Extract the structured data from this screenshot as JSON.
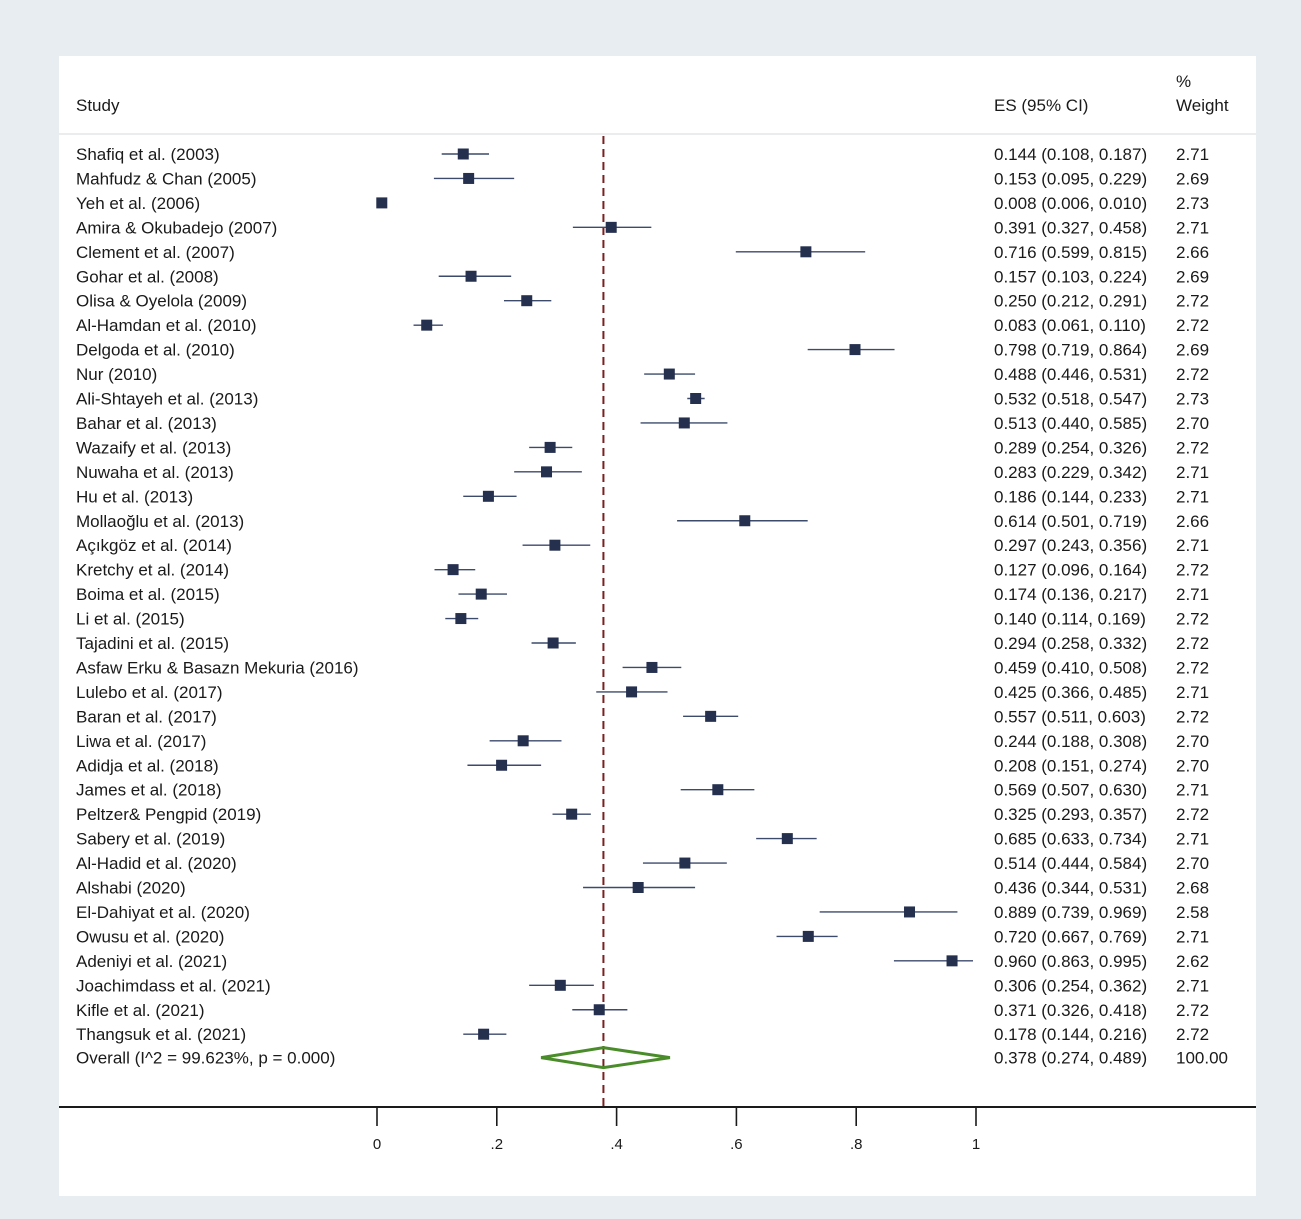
{
  "chart_data": {
    "type": "forest",
    "headers": {
      "study": "Study",
      "es": "ES (95% CI)",
      "weight_line1": "%",
      "weight_line2": "Weight"
    },
    "studies": [
      {
        "name": "Shafiq et al. (2003)",
        "es": 0.144,
        "lo": 0.108,
        "hi": 0.187,
        "es_text": "0.144 (0.108, 0.187)",
        "weight": "2.71"
      },
      {
        "name": "Mahfudz & Chan (2005)",
        "es": 0.153,
        "lo": 0.095,
        "hi": 0.229,
        "es_text": "0.153 (0.095, 0.229)",
        "weight": "2.69"
      },
      {
        "name": "Yeh et al. (2006)",
        "es": 0.008,
        "lo": 0.006,
        "hi": 0.01,
        "es_text": "0.008 (0.006, 0.010)",
        "weight": "2.73"
      },
      {
        "name": "Amira & Okubadejo (2007)",
        "es": 0.391,
        "lo": 0.327,
        "hi": 0.458,
        "es_text": "0.391 (0.327, 0.458)",
        "weight": "2.71"
      },
      {
        "name": "Clement et al. (2007)",
        "es": 0.716,
        "lo": 0.599,
        "hi": 0.815,
        "es_text": "0.716 (0.599, 0.815)",
        "weight": "2.66"
      },
      {
        "name": "Gohar et al. (2008)",
        "es": 0.157,
        "lo": 0.103,
        "hi": 0.224,
        "es_text": "0.157 (0.103, 0.224)",
        "weight": "2.69"
      },
      {
        "name": "Olisa & Oyelola (2009)",
        "es": 0.25,
        "lo": 0.212,
        "hi": 0.291,
        "es_text": "0.250 (0.212, 0.291)",
        "weight": "2.72"
      },
      {
        "name": "Al-Hamdan et al. (2010)",
        "es": 0.083,
        "lo": 0.061,
        "hi": 0.11,
        "es_text": "0.083 (0.061, 0.110)",
        "weight": "2.72"
      },
      {
        "name": "Delgoda et al. (2010)",
        "es": 0.798,
        "lo": 0.719,
        "hi": 0.864,
        "es_text": "0.798 (0.719, 0.864)",
        "weight": "2.69"
      },
      {
        "name": "Nur (2010)",
        "es": 0.488,
        "lo": 0.446,
        "hi": 0.531,
        "es_text": "0.488 (0.446, 0.531)",
        "weight": "2.72"
      },
      {
        "name": "Ali-Shtayeh et al. (2013)",
        "es": 0.532,
        "lo": 0.518,
        "hi": 0.547,
        "es_text": "0.532 (0.518, 0.547)",
        "weight": "2.73"
      },
      {
        "name": "Bahar et al. (2013)",
        "es": 0.513,
        "lo": 0.44,
        "hi": 0.585,
        "es_text": "0.513 (0.440, 0.585)",
        "weight": "2.70"
      },
      {
        "name": "Wazaify et al. (2013)",
        "es": 0.289,
        "lo": 0.254,
        "hi": 0.326,
        "es_text": "0.289 (0.254, 0.326)",
        "weight": "2.72"
      },
      {
        "name": "Nuwaha et al. (2013)",
        "es": 0.283,
        "lo": 0.229,
        "hi": 0.342,
        "es_text": "0.283 (0.229, 0.342)",
        "weight": "2.71"
      },
      {
        "name": "Hu et al. (2013)",
        "es": 0.186,
        "lo": 0.144,
        "hi": 0.233,
        "es_text": "0.186 (0.144, 0.233)",
        "weight": "2.71"
      },
      {
        "name": "Mollaoğlu et al. (2013)",
        "es": 0.614,
        "lo": 0.501,
        "hi": 0.719,
        "es_text": "0.614 (0.501, 0.719)",
        "weight": "2.66"
      },
      {
        "name": "Açıkgöz et al. (2014)",
        "es": 0.297,
        "lo": 0.243,
        "hi": 0.356,
        "es_text": "0.297 (0.243, 0.356)",
        "weight": "2.71"
      },
      {
        "name": "Kretchy et al. (2014)",
        "es": 0.127,
        "lo": 0.096,
        "hi": 0.164,
        "es_text": "0.127 (0.096, 0.164)",
        "weight": "2.72"
      },
      {
        "name": "Boima et al. (2015)",
        "es": 0.174,
        "lo": 0.136,
        "hi": 0.217,
        "es_text": "0.174 (0.136, 0.217)",
        "weight": "2.71"
      },
      {
        "name": "Li et al. (2015)",
        "es": 0.14,
        "lo": 0.114,
        "hi": 0.169,
        "es_text": "0.140 (0.114, 0.169)",
        "weight": "2.72"
      },
      {
        "name": "Tajadini et al. (2015)",
        "es": 0.294,
        "lo": 0.258,
        "hi": 0.332,
        "es_text": "0.294 (0.258, 0.332)",
        "weight": "2.72"
      },
      {
        "name": "Asfaw Erku & Basazn Mekuria (2016)",
        "es": 0.459,
        "lo": 0.41,
        "hi": 0.508,
        "es_text": "0.459 (0.410, 0.508)",
        "weight": "2.72"
      },
      {
        "name": "Lulebo et al. (2017)",
        "es": 0.425,
        "lo": 0.366,
        "hi": 0.485,
        "es_text": "0.425 (0.366, 0.485)",
        "weight": "2.71"
      },
      {
        "name": "Baran et al. (2017)",
        "es": 0.557,
        "lo": 0.511,
        "hi": 0.603,
        "es_text": "0.557 (0.511, 0.603)",
        "weight": "2.72"
      },
      {
        "name": "Liwa et al. (2017)",
        "es": 0.244,
        "lo": 0.188,
        "hi": 0.308,
        "es_text": "0.244 (0.188, 0.308)",
        "weight": "2.70"
      },
      {
        "name": "Adidja et al. (2018)",
        "es": 0.208,
        "lo": 0.151,
        "hi": 0.274,
        "es_text": "0.208 (0.151, 0.274)",
        "weight": "2.70"
      },
      {
        "name": "James et al. (2018)",
        "es": 0.569,
        "lo": 0.507,
        "hi": 0.63,
        "es_text": "0.569 (0.507, 0.630)",
        "weight": "2.71"
      },
      {
        "name": "Peltzer& Pengpid (2019)",
        "es": 0.325,
        "lo": 0.293,
        "hi": 0.357,
        "es_text": "0.325 (0.293, 0.357)",
        "weight": "2.72"
      },
      {
        "name": "Sabery et al. (2019)",
        "es": 0.685,
        "lo": 0.633,
        "hi": 0.734,
        "es_text": "0.685 (0.633, 0.734)",
        "weight": "2.71"
      },
      {
        "name": "Al-Hadid et al. (2020)",
        "es": 0.514,
        "lo": 0.444,
        "hi": 0.584,
        "es_text": "0.514 (0.444, 0.584)",
        "weight": "2.70"
      },
      {
        "name": "Alshabi (2020)",
        "es": 0.436,
        "lo": 0.344,
        "hi": 0.531,
        "es_text": "0.436 (0.344, 0.531)",
        "weight": "2.68"
      },
      {
        "name": "El-Dahiyat et al. (2020)",
        "es": 0.889,
        "lo": 0.739,
        "hi": 0.969,
        "es_text": "0.889 (0.739, 0.969)",
        "weight": "2.58"
      },
      {
        "name": "Owusu et al. (2020)",
        "es": 0.72,
        "lo": 0.667,
        "hi": 0.769,
        "es_text": "0.720 (0.667, 0.769)",
        "weight": "2.71"
      },
      {
        "name": "Adeniyi et al. (2021)",
        "es": 0.96,
        "lo": 0.863,
        "hi": 0.995,
        "es_text": "0.960 (0.863, 0.995)",
        "weight": "2.62"
      },
      {
        "name": "Joachimdass et al. (2021)",
        "es": 0.306,
        "lo": 0.254,
        "hi": 0.362,
        "es_text": "0.306 (0.254, 0.362)",
        "weight": "2.71"
      },
      {
        "name": "Kifle et al. (2021)",
        "es": 0.371,
        "lo": 0.326,
        "hi": 0.418,
        "es_text": "0.371 (0.326, 0.418)",
        "weight": "2.72"
      },
      {
        "name": "Thangsuk et al. (2021)",
        "es": 0.178,
        "lo": 0.144,
        "hi": 0.216,
        "es_text": "0.178 (0.144, 0.216)",
        "weight": "2.72"
      }
    ],
    "overall": {
      "label": "Overall  (I^2 = 99.623%, p = 0.000)",
      "es": 0.378,
      "lo": 0.274,
      "hi": 0.489,
      "es_text": "0.378 (0.274, 0.489)",
      "weight": "100.00"
    },
    "x_axis": {
      "range": [
        0,
        1
      ],
      "ticks": [
        0,
        0.2,
        0.4,
        0.6,
        0.8,
        1
      ],
      "tick_labels": [
        "0",
        ".2",
        ".4",
        ".6",
        ".8",
        "1"
      ]
    },
    "colors": {
      "marker": "#25304f",
      "ci_line": "#3c4a6b",
      "overall_diamond": "#4a8c2a",
      "reference_line": "#7a2020",
      "background": "#e8edf1"
    }
  }
}
